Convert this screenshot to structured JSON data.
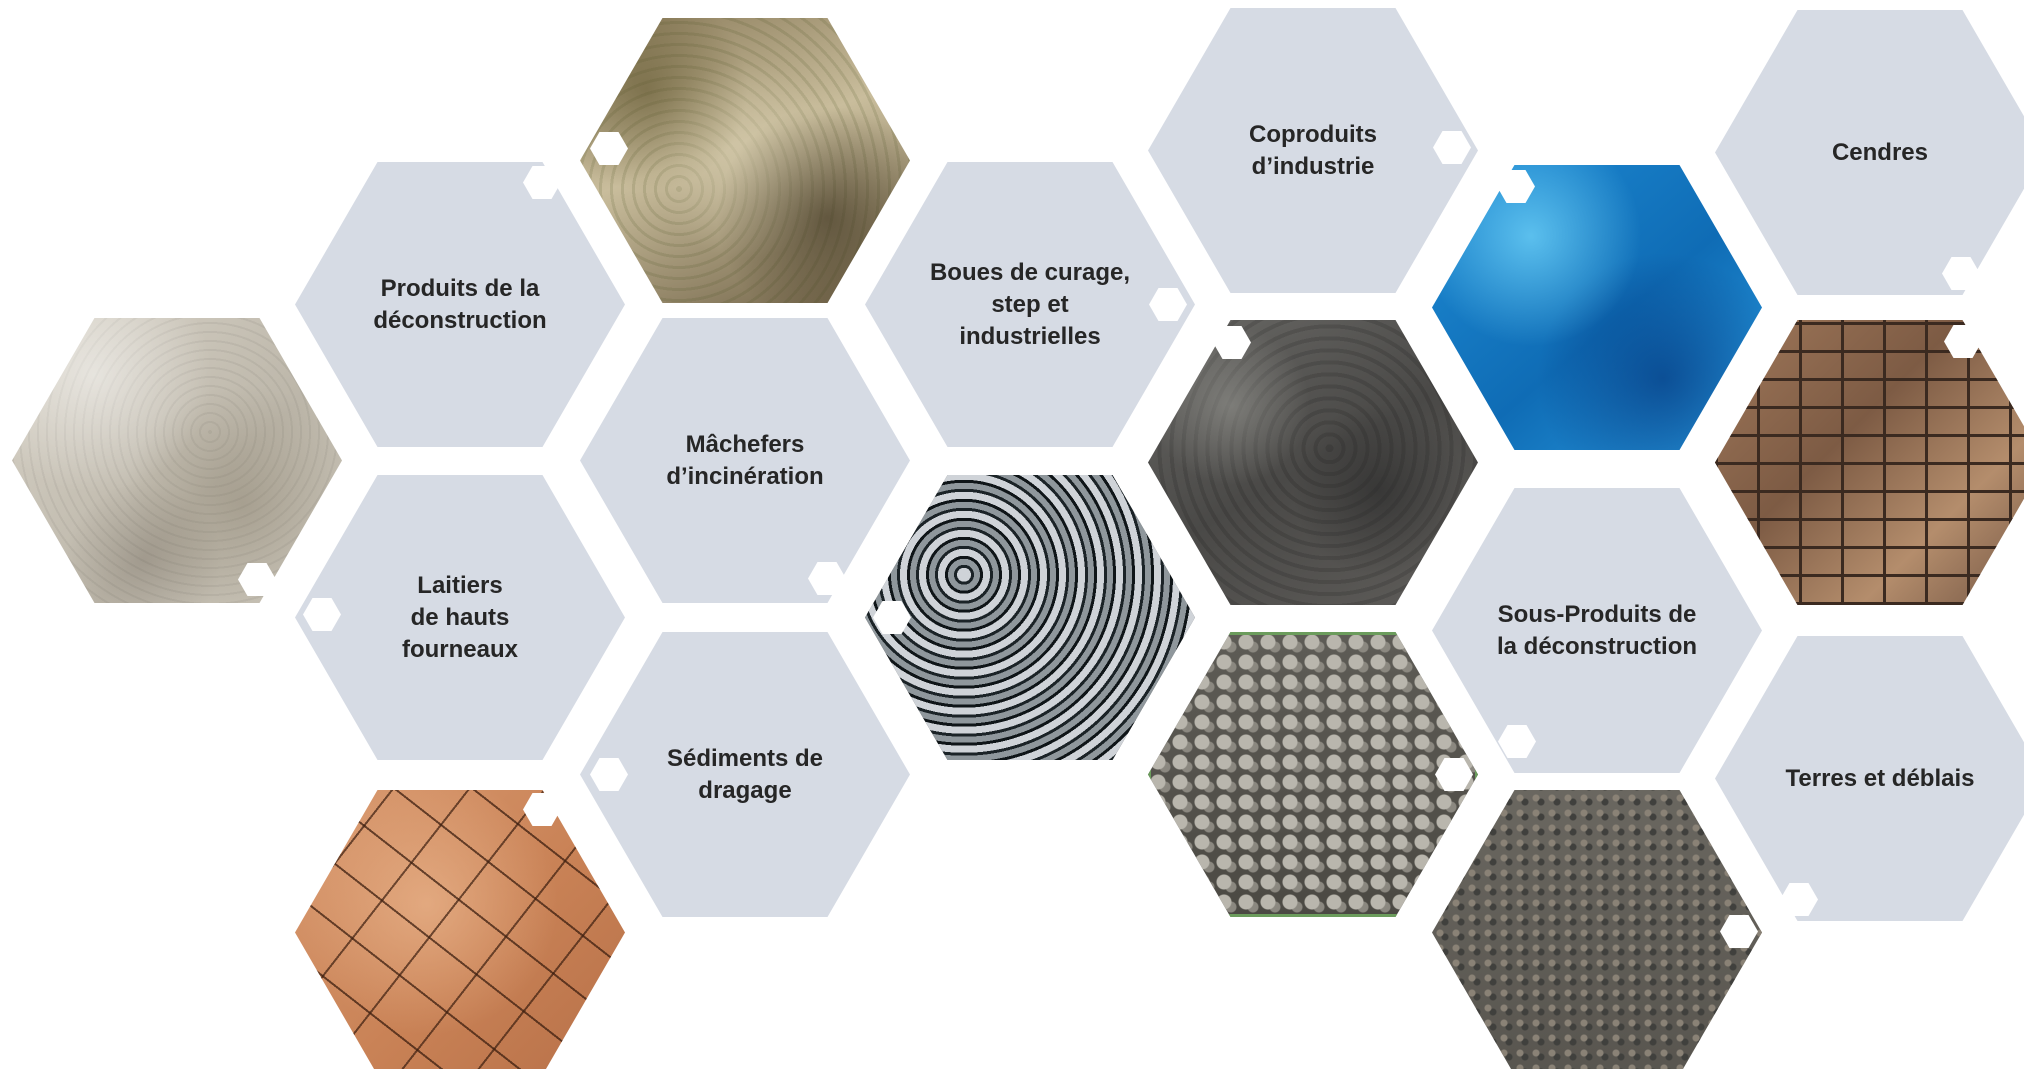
{
  "labels": {
    "produits_deconstruction": "Produits de la\ndéconstruction",
    "machefers": "Mâchefers\nd’incinération",
    "laitiers": "Laitiers\nde hauts\nfourneaux",
    "sediments": "Sédiments de\ndragage",
    "boues": "Boues de curage,\nstep et\nindustrielles",
    "coproduits": "Coproduits\nd’industrie",
    "sous_produits": "Sous-Produits de\nla déconstruction",
    "cendres": "Cendres",
    "terres": "Terres et déblais"
  },
  "textures": [
    "concrete-paper-texture",
    "grunge-moss-texture",
    "cracked-clay-texture",
    "cracked-asphalt-texture",
    "dark-rock-texture",
    "gravel-texture",
    "blue-metal-texture",
    "aggregate-asphalt-texture",
    "stone-wall-texture"
  ],
  "colors": {
    "label_hex": "#d6dbe4",
    "text": "#262626",
    "background": "#ffffff"
  }
}
